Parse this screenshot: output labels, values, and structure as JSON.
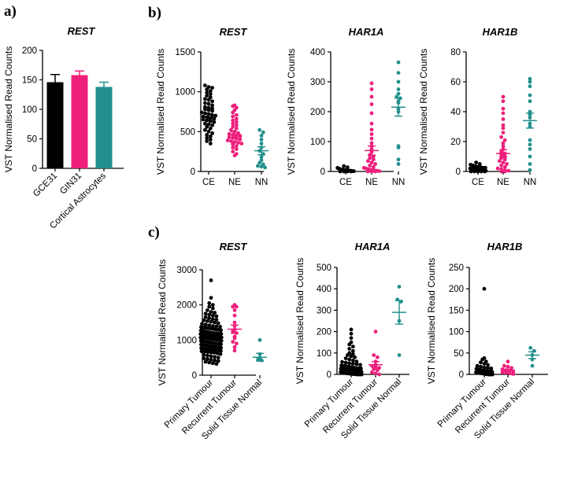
{
  "panel_letters": {
    "a": "a)",
    "b": "b)",
    "c": "c)"
  },
  "colors": {
    "black": "#000000",
    "pink": "#ee1f7c",
    "teal": "#22908c",
    "axis": "#000000"
  },
  "chart_data": [
    {
      "id": "a",
      "type": "bar",
      "title": "REST",
      "ylabel": "VST Normalised Read Counts",
      "xlabel": "",
      "ylim": [
        0,
        200
      ],
      "yticks": [
        0,
        50,
        100,
        150,
        200
      ],
      "categories": [
        "GCE31",
        "GIN31",
        "Cortical Astrocytes"
      ],
      "values": [
        146,
        158,
        138
      ],
      "errors": [
        13,
        7,
        8
      ],
      "colors": [
        "black",
        "pink",
        "teal"
      ],
      "xtick_rotation": -45
    },
    {
      "id": "b1",
      "type": "scatter",
      "title": "REST",
      "ylabel": "VST Normalised Read Counts",
      "ylim": [
        0,
        1500
      ],
      "yticks": [
        0,
        500,
        1000,
        1500
      ],
      "categories": [
        "CE",
        "NE",
        "NN"
      ],
      "groups": [
        {
          "name": "CE",
          "color": "black",
          "mean": 680,
          "sem": 40,
          "points": [
            1080,
            1060,
            1050,
            1030,
            1010,
            990,
            970,
            950,
            930,
            910,
            900,
            880,
            860,
            850,
            830,
            810,
            800,
            790,
            780,
            770,
            760,
            740,
            730,
            720,
            710,
            700,
            690,
            680,
            670,
            660,
            650,
            640,
            630,
            620,
            600,
            590,
            580,
            560,
            540,
            520,
            500,
            480,
            460,
            440,
            420,
            400,
            380,
            350
          ]
        },
        {
          "name": "NE",
          "color": "pink",
          "mean": 460,
          "sem": 35,
          "points": [
            830,
            820,
            800,
            770,
            740,
            710,
            690,
            660,
            640,
            620,
            600,
            580,
            560,
            540,
            520,
            500,
            480,
            470,
            460,
            450,
            440,
            430,
            420,
            410,
            400,
            390,
            380,
            370,
            360,
            350,
            340,
            320,
            300,
            280,
            250,
            220,
            200
          ]
        },
        {
          "name": "NN",
          "color": "teal",
          "mean": 260,
          "sem": 50,
          "points": [
            520,
            490,
            450,
            400,
            350,
            300,
            260,
            220,
            180,
            140,
            110,
            90,
            70,
            60,
            50
          ]
        }
      ]
    },
    {
      "id": "b2",
      "type": "scatter",
      "title": "HAR1A",
      "ylabel": "VST Normalised Read Counts",
      "ylim": [
        0,
        400
      ],
      "yticks": [
        0,
        100,
        200,
        300,
        400
      ],
      "categories": [
        "CE",
        "NE",
        "NN"
      ],
      "groups": [
        {
          "name": "CE",
          "color": "black",
          "mean": 4,
          "sem": 1,
          "points": [
            18,
            14,
            12,
            10,
            9,
            8,
            7,
            6,
            6,
            5,
            5,
            4,
            4,
            3,
            3,
            3,
            2,
            2,
            2,
            1,
            1,
            1,
            0,
            0,
            0,
            0
          ]
        },
        {
          "name": "NE",
          "color": "pink",
          "mean": 70,
          "sem": 15,
          "points": [
            295,
            275,
            250,
            225,
            195,
            160,
            140,
            125,
            110,
            95,
            85,
            75,
            65,
            55,
            50,
            45,
            40,
            35,
            30,
            25,
            20,
            15,
            12,
            10,
            8,
            6,
            5,
            4,
            3,
            2,
            1,
            0,
            0,
            0
          ]
        },
        {
          "name": "NN",
          "color": "teal",
          "mean": 215,
          "sem": 30,
          "points": [
            365,
            330,
            300,
            275,
            260,
            250,
            245,
            235,
            230,
            210,
            200,
            85,
            80,
            40,
            25
          ]
        }
      ]
    },
    {
      "id": "b3",
      "type": "scatter",
      "title": "HAR1B",
      "ylabel": "VST Normalised Read Counts",
      "ylim": [
        0,
        80
      ],
      "yticks": [
        0,
        20,
        40,
        60,
        80
      ],
      "categories": [
        "CE",
        "NE",
        "NN"
      ],
      "groups": [
        {
          "name": "CE",
          "color": "black",
          "mean": 1.5,
          "sem": 0.3,
          "points": [
            6,
            5,
            4.5,
            4,
            3.5,
            3,
            3,
            2.5,
            2.5,
            2,
            2,
            2,
            1.5,
            1.5,
            1,
            1,
            1,
            0.5,
            0.5,
            0.5,
            0,
            0,
            0,
            0,
            0
          ]
        },
        {
          "name": "NE",
          "color": "pink",
          "mean": 12,
          "sem": 2.5,
          "points": [
            50,
            47,
            42,
            39,
            35,
            31,
            29,
            26,
            23,
            21,
            19,
            17,
            15,
            13,
            12,
            11,
            10,
            9,
            8,
            7,
            6,
            5,
            4,
            3,
            2,
            1.5,
            1,
            0.5,
            0,
            0
          ]
        },
        {
          "name": "NN",
          "color": "teal",
          "mean": 34,
          "sem": 5,
          "points": [
            62,
            60,
            57,
            51,
            47,
            40,
            38,
            36,
            32,
            30,
            21,
            18,
            15,
            10,
            5,
            1
          ]
        }
      ]
    },
    {
      "id": "c1",
      "type": "scatter",
      "title": "REST",
      "ylabel": "VST Normalised Read Counts",
      "ylim": [
        0,
        3000
      ],
      "yticks": [
        0,
        1000,
        2000,
        3000
      ],
      "categories": [
        "Primary Tumour",
        "Recurrent Tumour",
        "Solid Tissue Normal"
      ],
      "xtick_rotation": -45,
      "groups": [
        {
          "name": "Primary Tumour",
          "color": "black",
          "mean": 1100,
          "sem": 25,
          "points": [
            2700,
            2200,
            2050,
            2000,
            1950,
            1900,
            1850,
            1800,
            1780,
            1750,
            1720,
            1700,
            1680,
            1650,
            1620,
            1600,
            1580,
            1560,
            1540,
            1520,
            1500,
            1480,
            1460,
            1440,
            1420,
            1400,
            1390,
            1380,
            1370,
            1360,
            1350,
            1340,
            1330,
            1320,
            1310,
            1300,
            1290,
            1280,
            1270,
            1260,
            1250,
            1240,
            1230,
            1220,
            1210,
            1200,
            1195,
            1190,
            1185,
            1180,
            1175,
            1170,
            1165,
            1160,
            1155,
            1150,
            1145,
            1140,
            1135,
            1130,
            1125,
            1120,
            1115,
            1110,
            1105,
            1100,
            1095,
            1090,
            1085,
            1080,
            1075,
            1070,
            1065,
            1060,
            1055,
            1050,
            1045,
            1040,
            1035,
            1030,
            1025,
            1020,
            1015,
            1010,
            1005,
            1000,
            990,
            980,
            970,
            960,
            950,
            940,
            930,
            920,
            910,
            900,
            890,
            880,
            870,
            860,
            850,
            840,
            830,
            820,
            810,
            800,
            790,
            780,
            770,
            760,
            750,
            740,
            730,
            720,
            710,
            700,
            690,
            680,
            670,
            660,
            650,
            640,
            620,
            600,
            580,
            560,
            540,
            520,
            500,
            480,
            460,
            440,
            420,
            400,
            380,
            360,
            340,
            320
          ]
        },
        {
          "name": "Recurrent Tumour",
          "color": "pink",
          "mean": 1310,
          "sem": 120,
          "points": [
            2000,
            1950,
            1950,
            1850,
            1700,
            1500,
            1400,
            1300,
            1250,
            1200,
            1100,
            1050,
            950,
            900,
            800,
            700
          ]
        },
        {
          "name": "Solid Tissue Normal",
          "color": "teal",
          "mean": 510,
          "sem": 110,
          "points": [
            1000,
            600,
            500,
            450,
            420
          ]
        }
      ]
    },
    {
      "id": "c2",
      "type": "scatter",
      "title": "HAR1A",
      "ylabel": "VST Normalised Read Counts",
      "ylim": [
        0,
        500
      ],
      "yticks": [
        0,
        100,
        200,
        300,
        400,
        500
      ],
      "categories": [
        "Primary Tumour",
        "Recurrent Tumour",
        "Solid Tissue Normal"
      ],
      "xtick_rotation": -45,
      "groups": [
        {
          "name": "Primary Tumour",
          "color": "black",
          "mean": 20,
          "sem": 3,
          "points": [
            210,
            190,
            170,
            150,
            140,
            130,
            120,
            110,
            100,
            95,
            90,
            85,
            80,
            75,
            70,
            65,
            60,
            58,
            55,
            52,
            50,
            48,
            45,
            42,
            40,
            38,
            36,
            34,
            32,
            30,
            29,
            28,
            27,
            26,
            25,
            24,
            23,
            22,
            21,
            20,
            19,
            18,
            17,
            16,
            15,
            14,
            13,
            12,
            11,
            10,
            9,
            8,
            7,
            6,
            5,
            5,
            4,
            4,
            3,
            3,
            2,
            2,
            1,
            1,
            0,
            0,
            0,
            0,
            0,
            0
          ]
        },
        {
          "name": "Recurrent Tumour",
          "color": "pink",
          "mean": 45,
          "sem": 15,
          "points": [
            200,
            90,
            80,
            60,
            45,
            40,
            35,
            30,
            25,
            20,
            10,
            5,
            0
          ]
        },
        {
          "name": "Solid Tissue Normal",
          "color": "teal",
          "mean": 290,
          "sem": 55,
          "points": [
            410,
            350,
            340,
            250,
            90
          ]
        }
      ]
    },
    {
      "id": "c3",
      "type": "scatter",
      "title": "HAR1B",
      "ylabel": "VST Normalised Read Counts",
      "ylim": [
        0,
        250
      ],
      "yticks": [
        0,
        50,
        100,
        150,
        200,
        250
      ],
      "categories": [
        "Primary Tumour",
        "Recurrent Tumour",
        "Solid Tissue Normal"
      ],
      "xtick_rotation": -45,
      "groups": [
        {
          "name": "Primary Tumour",
          "color": "black",
          "mean": 4,
          "sem": 1,
          "points": [
            200,
            38,
            35,
            30,
            28,
            25,
            22,
            20,
            18,
            16,
            15,
            14,
            13,
            12,
            11,
            10,
            9,
            8,
            8,
            7,
            7,
            6,
            6,
            5,
            5,
            5,
            4,
            4,
            4,
            3,
            3,
            3,
            2,
            2,
            2,
            1,
            1,
            1,
            1,
            0,
            0,
            0,
            0,
            0,
            0,
            0
          ]
        },
        {
          "name": "Recurrent Tumour",
          "color": "pink",
          "mean": 10,
          "sem": 2,
          "points": [
            30,
            20,
            18,
            15,
            12,
            10,
            8,
            6,
            5,
            4,
            2,
            1
          ]
        },
        {
          "name": "Solid Tissue Normal",
          "color": "teal",
          "mean": 45,
          "sem": 8,
          "points": [
            62,
            55,
            45,
            35,
            20
          ]
        }
      ]
    }
  ]
}
